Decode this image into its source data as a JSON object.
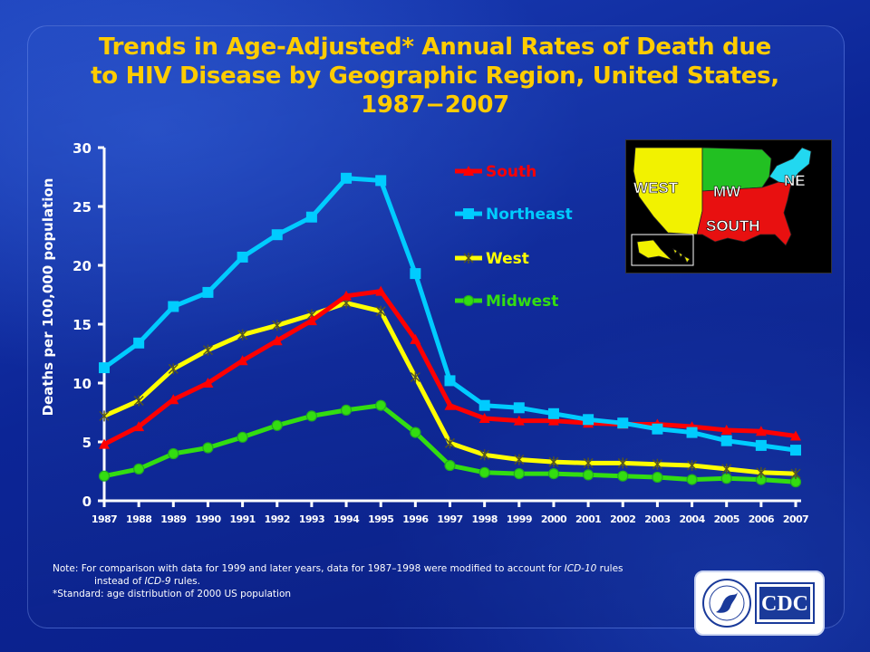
{
  "title": {
    "line1": "Trends in Age-Adjusted* Annual Rates of Death due",
    "line2": "to HIV Disease  by Geographic Region, United States,",
    "line3": "1987−2007"
  },
  "notes": {
    "line1_prefix": "Note: For comparison  with data for 1999 and later years, data for 1987–1998 were modified to account  for ",
    "line1_italic": "ICD-10",
    "line1_suffix": " rules",
    "line2_prefix": "instead of ",
    "line2_italic": "ICD-9",
    "line2_suffix": " rules.",
    "line3": "*Standard: age distribution  of 2000 US population"
  },
  "map": {
    "labels": {
      "west": "WEST",
      "midwest": "MW",
      "south": "SOUTH",
      "northeast": "NE"
    },
    "colors": {
      "west": "#f2f200",
      "midwest": "#22c022",
      "south": "#e81010",
      "northeast": "#22d8f0"
    }
  },
  "logo": {
    "text": "CDC",
    "seal_text": "DEPARTMENT OF HEALTH & HUMAN SERVICES USA"
  },
  "chart_data": {
    "type": "line",
    "title": "Trends in Age-Adjusted* Annual Rates of Death due to HIV Disease  by Geographic Region, United States, 1987−2007",
    "ylabel": "Deaths per 100,000 population",
    "xlabel": "",
    "ylim": [
      0,
      30
    ],
    "yticks": [
      0,
      5,
      10,
      15,
      20,
      25,
      30
    ],
    "grid": false,
    "legend_position": "top-center",
    "x": [
      1987,
      1988,
      1989,
      1990,
      1991,
      1992,
      1993,
      1994,
      1995,
      1996,
      1997,
      1998,
      1999,
      2000,
      2001,
      2002,
      2003,
      2004,
      2005,
      2006,
      2007
    ],
    "series": [
      {
        "name": "South",
        "color": "#ff0000",
        "marker": "triangle",
        "values": [
          4.8,
          6.3,
          8.6,
          10.0,
          11.9,
          13.6,
          15.3,
          17.4,
          17.8,
          13.7,
          8.1,
          7.0,
          6.8,
          6.8,
          6.6,
          6.5,
          6.5,
          6.3,
          6.0,
          5.9,
          5.5
        ]
      },
      {
        "name": "Northeast",
        "color": "#00ccff",
        "marker": "square",
        "values": [
          11.3,
          13.4,
          16.5,
          17.7,
          20.7,
          22.6,
          24.1,
          27.4,
          27.2,
          19.3,
          10.2,
          8.1,
          7.9,
          7.4,
          6.9,
          6.6,
          6.1,
          5.8,
          5.1,
          4.7,
          4.3
        ]
      },
      {
        "name": "West",
        "color": "#ffff00",
        "marker": "asterisk",
        "values": [
          7.2,
          8.5,
          11.2,
          12.8,
          14.1,
          14.9,
          15.8,
          16.8,
          16.1,
          10.5,
          4.9,
          3.9,
          3.5,
          3.3,
          3.2,
          3.2,
          3.1,
          3.0,
          2.7,
          2.4,
          2.3
        ]
      },
      {
        "name": "Midwest",
        "color": "#33dd11",
        "marker": "circle",
        "values": [
          2.1,
          2.7,
          4.0,
          4.5,
          5.4,
          6.4,
          7.2,
          7.7,
          8.1,
          5.8,
          3.0,
          2.4,
          2.3,
          2.3,
          2.2,
          2.1,
          2.0,
          1.8,
          1.9,
          1.8,
          1.6
        ]
      }
    ]
  }
}
